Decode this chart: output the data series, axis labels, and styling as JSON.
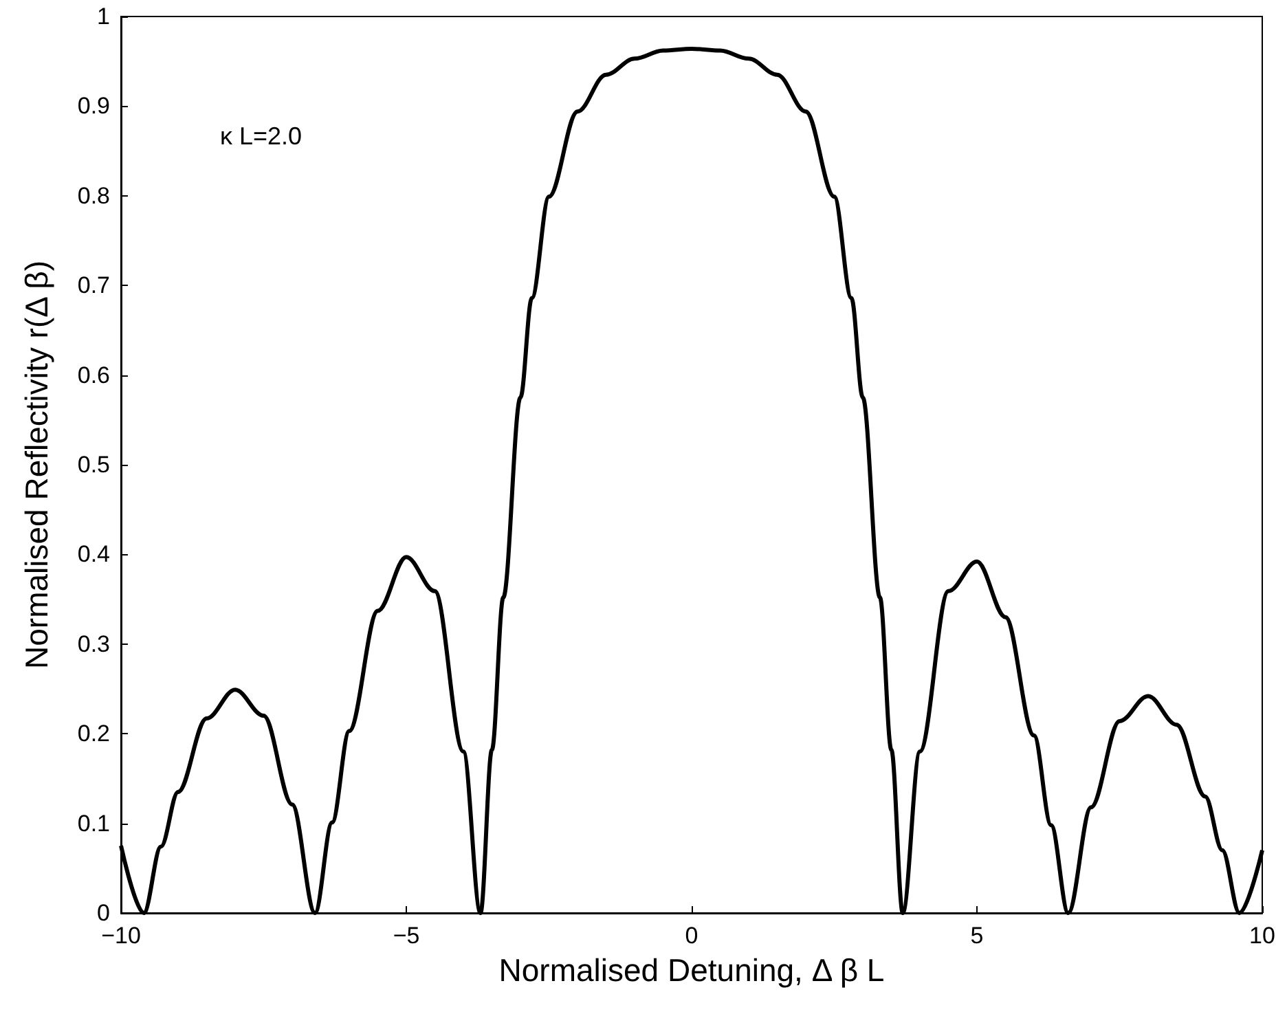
{
  "chart_data": {
    "type": "line",
    "xlabel": "Normalised Detuning, Δ β L",
    "ylabel": "Normalised Reflectivity r(Δ β)",
    "annotations": [
      "κ L=2.0"
    ],
    "x": [
      -10,
      -9.6,
      -9.3,
      -9,
      -8.5,
      -8,
      -7.5,
      -7,
      -6.6,
      -6.3,
      -6,
      -5.5,
      -5,
      -4.5,
      -4,
      -3.7,
      -3.5,
      -3.3,
      -3,
      -2.8,
      -2.5,
      -2,
      -1.5,
      -1,
      -0.5,
      0,
      0.5,
      1,
      1.5,
      2,
      2.5,
      2.8,
      3,
      3.3,
      3.5,
      3.7,
      4,
      4.5,
      5,
      5.5,
      6,
      6.3,
      6.6,
      7,
      7.5,
      8,
      8.5,
      9,
      9.3,
      9.6,
      10
    ],
    "series": [
      {
        "color": "#000000",
        "values": [
          0.075,
          0,
          0.074,
          0.135,
          0.217,
          0.249,
          0.22,
          0.121,
          0,
          0.101,
          0.203,
          0.337,
          0.397,
          0.359,
          0.18,
          0,
          0.182,
          0.352,
          0.575,
          0.686,
          0.799,
          0.894,
          0.935,
          0.953,
          0.962,
          0.964,
          0.962,
          0.953,
          0.935,
          0.894,
          0.799,
          0.686,
          0.575,
          0.352,
          0.182,
          0,
          0.18,
          0.359,
          0.392,
          0.33,
          0.198,
          0.098,
          0,
          0.118,
          0.214,
          0.242,
          0.21,
          0.13,
          0.07,
          0,
          0.07
        ]
      }
    ],
    "xlim": [
      -10,
      10
    ],
    "xticks": [
      {
        "value": -10,
        "label": "−10"
      },
      {
        "value": -5,
        "label": "−5"
      },
      0,
      5,
      10
    ],
    "ylim": [
      0,
      1
    ],
    "yticks": [
      0,
      0.1,
      0.2,
      0.3,
      0.4,
      0.5,
      0.6,
      0.7,
      0.8,
      0.9,
      1
    ],
    "grid": false,
    "marker": "none",
    "line_style": "solid"
  }
}
